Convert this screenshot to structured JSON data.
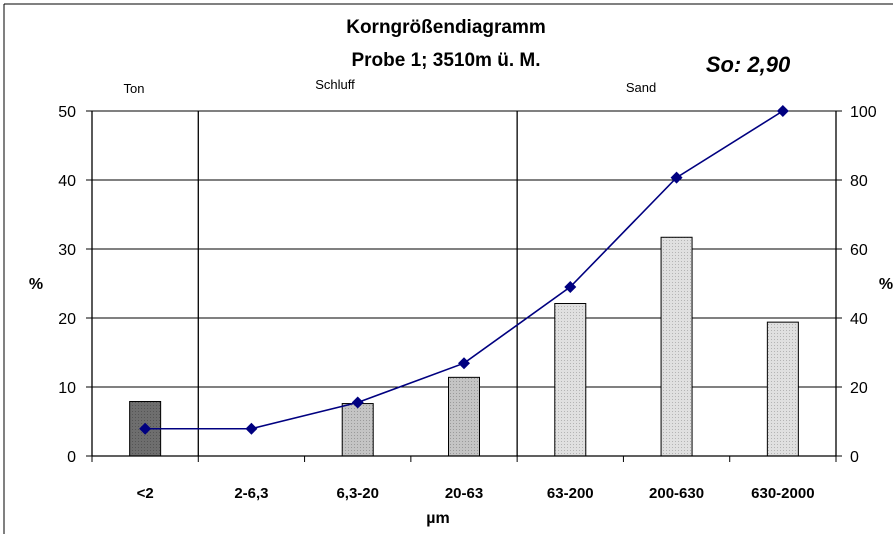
{
  "chart_data": {
    "type": "bar+line",
    "title": "Korngrößendiagramm",
    "subtitle": "Probe 1; 3510m ü. M.",
    "annotation": "So: 2,90",
    "zone_labels": [
      "Ton",
      "Schluff",
      "Sand"
    ],
    "categories": [
      "<2",
      "2-6,3",
      "6,3-20",
      "20-63",
      "63-200",
      "200-630",
      "630-2000"
    ],
    "xlabel": "µm",
    "ylabel_left": "%",
    "ylabel_right": "%",
    "y_left": {
      "min": 0,
      "max": 50,
      "ticks": [
        "0",
        "10",
        "20",
        "30",
        "40",
        "50"
      ]
    },
    "y_right": {
      "min": 0,
      "max": 100,
      "ticks": [
        "0",
        "20",
        "40",
        "60",
        "80",
        "100"
      ]
    },
    "grid": true,
    "series": [
      {
        "type": "bar",
        "axis": "left",
        "values": [
          7.9,
          0,
          7.6,
          11.4,
          22.1,
          31.7,
          19.4
        ]
      },
      {
        "type": "line",
        "axis": "right",
        "values": [
          7.9,
          7.9,
          15.5,
          26.9,
          49.0,
          80.7,
          100.0
        ]
      }
    ],
    "colors": {
      "bar_clay": "#6e6e6e",
      "bar_silt": "#c4c4c4",
      "bar_sand": "#e0e0e0",
      "line": "#000080"
    }
  }
}
